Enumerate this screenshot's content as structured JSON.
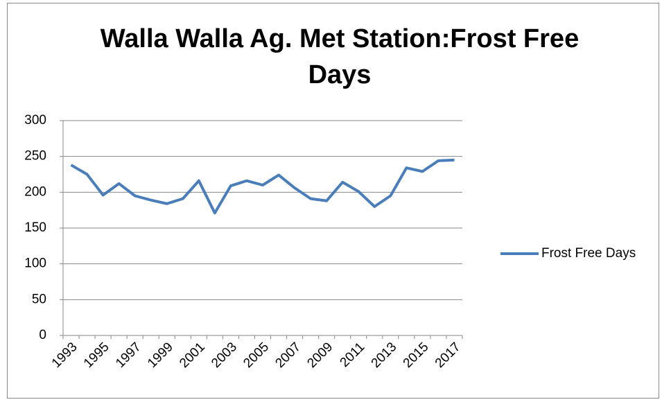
{
  "chart_data": {
    "type": "line",
    "title": "Walla Walla Ag. Met Station:Frost Free Days",
    "categories": [
      "1993",
      null,
      "1995",
      null,
      "1997",
      null,
      "1999",
      null,
      "2001",
      null,
      "2003",
      null,
      "2005",
      null,
      "2007",
      null,
      "2009",
      null,
      "2011",
      null,
      "2013",
      null,
      "2015",
      null,
      "2017"
    ],
    "series": [
      {
        "name": "Frost Free Days",
        "color": "#4a7ebb",
        "values": [
          238,
          225,
          196,
          212,
          195,
          189,
          184,
          191,
          216,
          171,
          209,
          216,
          210,
          224,
          206,
          191,
          188,
          214,
          201,
          180,
          195,
          234,
          229,
          244,
          245
        ]
      }
    ],
    "ylim": [
      0,
      300
    ],
    "yticks": [
      0,
      50,
      100,
      150,
      200,
      250,
      300
    ],
    "grid": true,
    "legend": "right"
  }
}
